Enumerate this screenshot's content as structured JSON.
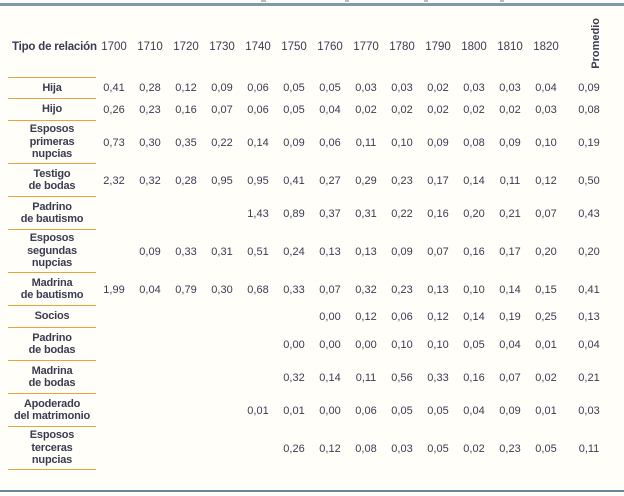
{
  "page": {
    "background": "#FFFEF9",
    "top_rule_color": "#7E99A7",
    "bottom_rule_color": "#64899A",
    "accent_line_color": "#EBA33F",
    "text_color": "#3B3B52"
  },
  "table": {
    "header": {
      "relation_label": "Tipo de relación",
      "years": [
        "1700",
        "1710",
        "1720",
        "1730",
        "1740",
        "1750",
        "1760",
        "1770",
        "1780",
        "1790",
        "1800",
        "1810",
        "1820"
      ],
      "average_label": "Promedio"
    },
    "rows": [
      {
        "label_lines": [
          "Hija"
        ],
        "values": [
          "0,41",
          "0,28",
          "0,12",
          "0,09",
          "0,06",
          "0,05",
          "0,05",
          "0,03",
          "0,03",
          "0,02",
          "0,03",
          "0,03",
          "0,04"
        ],
        "average": "0,09"
      },
      {
        "label_lines": [
          "Hijo"
        ],
        "values": [
          "0,26",
          "0,23",
          "0,16",
          "0,07",
          "0,06",
          "0,05",
          "0,04",
          "0,02",
          "0,02",
          "0,02",
          "0,02",
          "0,02",
          "0,03"
        ],
        "average": "0,08"
      },
      {
        "label_lines": [
          "Esposos",
          "primeras",
          "nupcias"
        ],
        "values": [
          "0,73",
          "0,30",
          "0,35",
          "0,22",
          "0,14",
          "0,09",
          "0,06",
          "0,11",
          "0,10",
          "0,09",
          "0,08",
          "0,09",
          "0,10"
        ],
        "average": "0,19"
      },
      {
        "label_lines": [
          "Testigo",
          "de bodas"
        ],
        "values": [
          "2,32",
          "0,32",
          "0,28",
          "0,95",
          "0,95",
          "0,41",
          "0,27",
          "0,29",
          "0,23",
          "0,17",
          "0,14",
          "0,11",
          "0,12"
        ],
        "average": "0,50"
      },
      {
        "label_lines": [
          "Padrino",
          "de bautismo"
        ],
        "values": [
          "",
          "",
          "",
          "",
          "1,43",
          "0,89",
          "0,37",
          "0,31",
          "0,22",
          "0,16",
          "0,20",
          "0,21",
          "0,07"
        ],
        "average": "0,43"
      },
      {
        "label_lines": [
          "Esposos",
          "segundas",
          "nupcias"
        ],
        "values": [
          "",
          "0,09",
          "0,33",
          "0,31",
          "0,51",
          "0,24",
          "0,13",
          "0,13",
          "0,09",
          "0,07",
          "0,16",
          "0,17",
          "0,20"
        ],
        "average": "0,20"
      },
      {
        "label_lines": [
          "Madrina",
          "de bautismo"
        ],
        "values": [
          "1,99",
          "0,04",
          "0,79",
          "0,30",
          "0,68",
          "0,33",
          "0,07",
          "0,32",
          "0,23",
          "0,13",
          "0,10",
          "0,14",
          "0,15"
        ],
        "average": "0,41"
      },
      {
        "label_lines": [
          "Socios"
        ],
        "values": [
          "",
          "",
          "",
          "",
          "",
          "",
          "0,00",
          "0,12",
          "0,06",
          "0,12",
          "0,14",
          "0,19",
          "0,25"
        ],
        "average": "0,13"
      },
      {
        "label_lines": [
          "Padrino",
          "de bodas"
        ],
        "values": [
          "",
          "",
          "",
          "",
          "",
          "0,00",
          "0,00",
          "0,00",
          "0,10",
          "0,10",
          "0,05",
          "0,04",
          "0,01"
        ],
        "average": "0,04"
      },
      {
        "label_lines": [
          "Madrina",
          "de bodas"
        ],
        "values": [
          "",
          "",
          "",
          "",
          "",
          "0,32",
          "0,14",
          "0,11",
          "0,56",
          "0,33",
          "0,16",
          "0,07",
          "0,02"
        ],
        "average": "0,21"
      },
      {
        "label_lines": [
          "Apoderado",
          "del matrimonio"
        ],
        "values": [
          "",
          "",
          "",
          "",
          "0,01",
          "0,01",
          "0,00",
          "0,06",
          "0,05",
          "0,05",
          "0,04",
          "0,09",
          "0,01"
        ],
        "average": "0,03"
      },
      {
        "label_lines": [
          "Esposos",
          "terceras",
          "nupcias"
        ],
        "values": [
          "",
          "",
          "",
          "",
          "",
          "0,26",
          "0,12",
          "0,08",
          "0,03",
          "0,05",
          "0,02",
          "0,23",
          "0,05"
        ],
        "average": "0,11"
      }
    ]
  }
}
